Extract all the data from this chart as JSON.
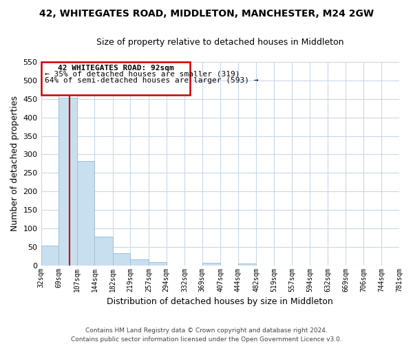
{
  "title": "42, WHITEGATES ROAD, MIDDLETON, MANCHESTER, M24 2GW",
  "subtitle": "Size of property relative to detached houses in Middleton",
  "xlabel": "Distribution of detached houses by size in Middleton",
  "ylabel": "Number of detached properties",
  "bar_color": "#c8dff0",
  "bar_edge_color": "#a0c0d8",
  "vline_x": 92,
  "vline_color": "#cc0000",
  "annotation_line1": "42 WHITEGATES ROAD: 92sqm",
  "annotation_line2": "← 35% of detached houses are smaller (319)",
  "annotation_line3": "64% of semi-detached houses are larger (593) →",
  "footer_line1": "Contains HM Land Registry data © Crown copyright and database right 2024.",
  "footer_line2": "Contains public sector information licensed under the Open Government Licence v3.0.",
  "ylim": [
    0,
    550
  ],
  "yticks": [
    0,
    50,
    100,
    150,
    200,
    250,
    300,
    350,
    400,
    450,
    500,
    550
  ],
  "bin_edges": [
    32,
    69,
    107,
    144,
    182,
    219,
    257,
    294,
    332,
    369,
    407,
    444,
    482,
    519,
    557,
    594,
    632,
    669,
    706,
    744,
    781
  ],
  "bin_counts": [
    53,
    453,
    283,
    78,
    32,
    17,
    9,
    0,
    0,
    6,
    0,
    4,
    0,
    0,
    0,
    0,
    0,
    0,
    0,
    0
  ],
  "background_color": "#ffffff",
  "grid_color": "#c8d8e8",
  "title_fontsize": 10,
  "subtitle_fontsize": 9,
  "ylabel_fontsize": 9,
  "xlabel_fontsize": 9,
  "tick_fontsize": 7,
  "annotation_fontsize": 8,
  "footer_fontsize": 6.5
}
